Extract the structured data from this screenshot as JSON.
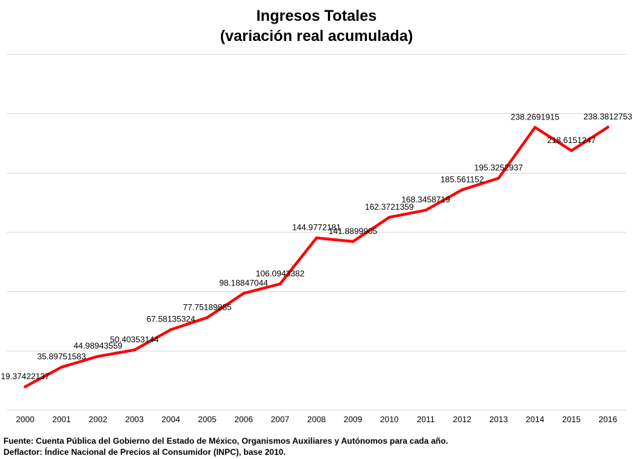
{
  "chart_data": {
    "type": "line",
    "title": "Ingresos Totales",
    "subtitle": "(variación real acumulada)",
    "xlabel": "",
    "ylabel": "",
    "categories": [
      "2000",
      "2001",
      "2002",
      "2003",
      "2004",
      "2005",
      "2006",
      "2007",
      "2008",
      "2009",
      "2010",
      "2011",
      "2012",
      "2013",
      "2014",
      "2015",
      "2016"
    ],
    "series": [
      {
        "values": [
          19.37422137,
          35.89751583,
          44.98943559,
          50.40353144,
          67.58135324,
          77.75189885,
          98.18847044,
          106.0943382,
          144.9772181,
          141.8899905,
          162.3721359,
          168.3458719,
          185.561152,
          195.3252937,
          238.2691915,
          218.6151247,
          238.3812753
        ],
        "labels": [
          "19.37422137",
          "35.89751583",
          "44.98943559",
          "50.40353144",
          "67.58135324",
          "77.75189885",
          "98.18847044",
          "106.0943382",
          "144.9772181",
          "141.8899905",
          "162.3721359",
          "168.3458719",
          "185.561152",
          "195.3252937",
          "238.2691915",
          "218.6151247",
          "238.3812753"
        ],
        "color": "#ff0000"
      }
    ],
    "ylim": [
      0,
      300
    ],
    "gridlines": "horizontal",
    "gridline_color": "#d9d9d9",
    "legend": "none",
    "y_tick_labels_shown": false
  },
  "footnotes": {
    "source": "Fuente: Cuenta Pública del Gobierno del Estado de México, Organismos Auxiliares y Autónomos para cada año.",
    "deflator": "Deflactor: Índice Nacional de Precios al Consumidor (INPC), base 2010."
  }
}
